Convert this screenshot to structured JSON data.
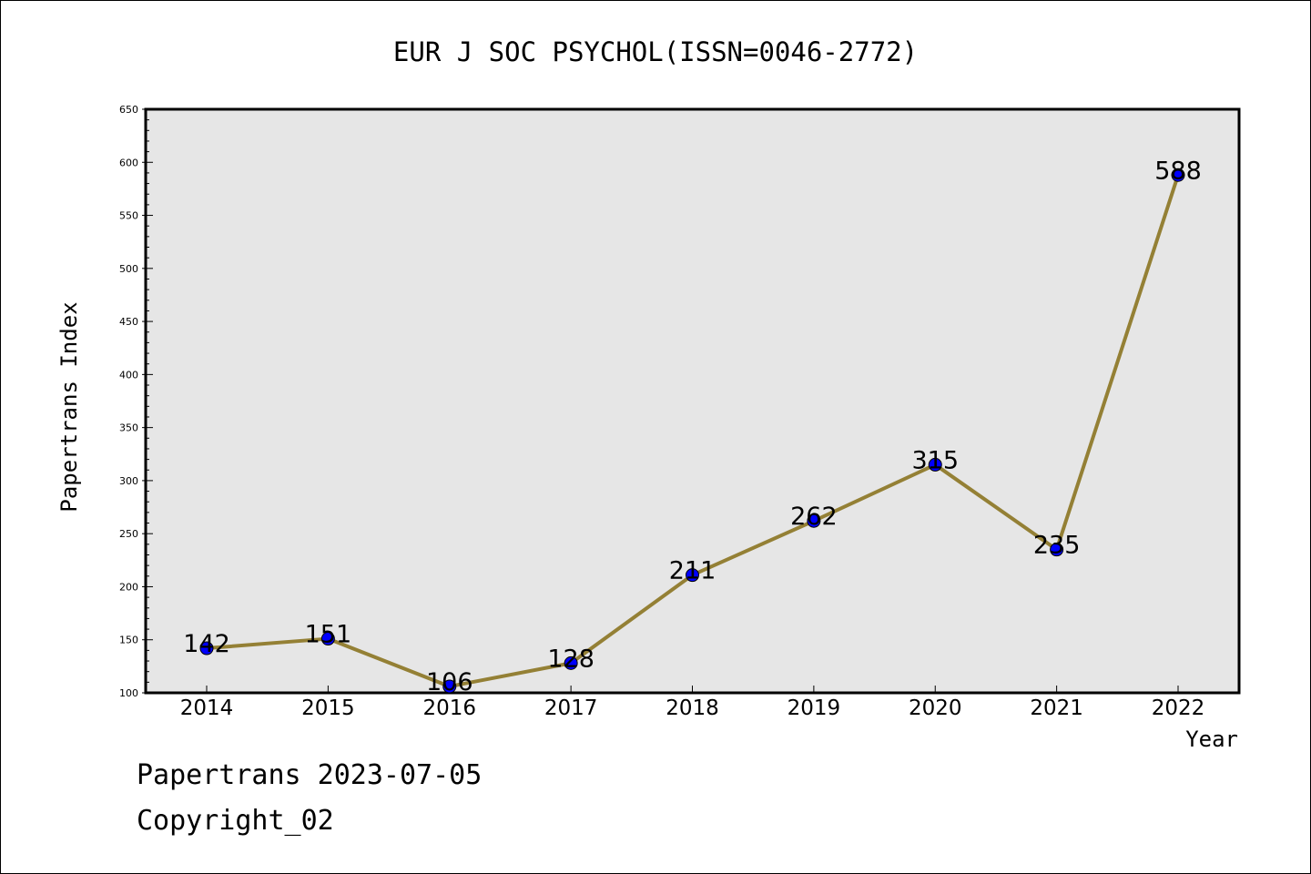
{
  "chart_data": {
    "type": "line",
    "title": "EUR J SOC PSYCHOL(ISSN=0046-2772)",
    "xlabel": "Year",
    "ylabel": "Papertrans Index",
    "categories": [
      "2014",
      "2015",
      "2016",
      "2017",
      "2018",
      "2019",
      "2020",
      "2021",
      "2022"
    ],
    "values": [
      142,
      151,
      106,
      128,
      211,
      262,
      315,
      235,
      588
    ],
    "data_labels": [
      "142",
      "151",
      "106",
      "128",
      "211",
      "262",
      "315",
      "235",
      "588"
    ],
    "ylim": [
      100,
      650
    ],
    "yticks": [
      "100",
      "150",
      "200",
      "250",
      "300",
      "350",
      "400",
      "450",
      "500",
      "550",
      "600",
      "650"
    ],
    "grid": false,
    "line_color": "#948035",
    "marker_color": "#0000ff",
    "plot_background": "#e6e6e6"
  },
  "footer": {
    "line1": "Papertrans 2023-07-05",
    "line2": "Copyright_02"
  }
}
